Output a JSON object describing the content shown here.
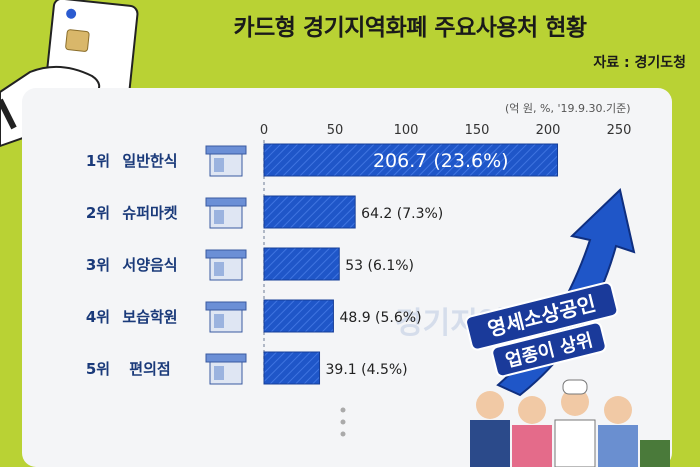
{
  "title": "카드형 경기지역화폐 주요사용처 현황",
  "source": "자료 : 경기도청",
  "unit_note": "(억 원, %, '19.9.30.기준)",
  "badge_line1": "영세소상공인",
  "badge_line2": "업종이 상위",
  "watermark": "경기지역",
  "colors": {
    "bar": "#1f56c8",
    "background": "#b9d234",
    "panel": "#f4f5f7"
  },
  "chart_data": {
    "type": "bar",
    "orientation": "horizontal",
    "title": "카드형 경기지역화폐 주요사용처 현황",
    "xlim": [
      0,
      250
    ],
    "x_ticks": [
      0,
      50,
      100,
      150,
      200,
      250
    ],
    "categories": [
      {
        "rank": "1위",
        "name": "일반한식",
        "value": 206.7,
        "label": "206.7 (23.6%)"
      },
      {
        "rank": "2위",
        "name": "슈퍼마켓",
        "value": 64.2,
        "label": "64.2 (7.3%)"
      },
      {
        "rank": "3위",
        "name": "서양음식",
        "value": 53,
        "label": "53 (6.1%)"
      },
      {
        "rank": "4위",
        "name": "보습학원",
        "value": 48.9,
        "label": "48.9 (5.6%)"
      },
      {
        "rank": "5위",
        "name": "편의점",
        "value": 39.1,
        "label": "39.1 (4.5%)"
      }
    ]
  }
}
